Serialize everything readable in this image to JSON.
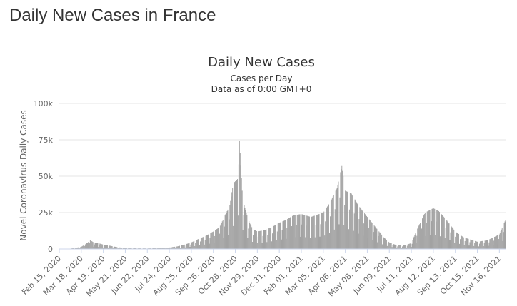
{
  "page": {
    "title": "Daily New Cases in France"
  },
  "chart_data": {
    "type": "bar",
    "title": "Daily New Cases",
    "subtitle_lines": [
      "Cases per Day",
      "Data as of 0:00 GMT+0"
    ],
    "xlabel": "",
    "ylabel": "Novel Coronavirus Daily Cases",
    "ylim": [
      0,
      100000
    ],
    "y_ticks": [
      {
        "value": 0,
        "label": "0"
      },
      {
        "value": 25000,
        "label": "25k"
      },
      {
        "value": 50000,
        "label": "50k"
      },
      {
        "value": 75000,
        "label": "75k"
      },
      {
        "value": 100000,
        "label": "100k"
      }
    ],
    "x_tick_labels": [
      "Feb 15, 2020",
      "Mar 18, 2020",
      "Apr 19, 2020",
      "May 21, 2020",
      "Jun 22, 2020",
      "Jul 24, 2020",
      "Aug 25, 2020",
      "Sep 26, 2020",
      "Oct 28, 2020",
      "Nov 29, 2020",
      "Dec 31, 2020",
      "Feb 01, 2021",
      "Mar 05, 2021",
      "Apr 06, 2021",
      "May 08, 2021",
      "Jun 09, 2021",
      "Jul 11, 2021",
      "Aug 12, 2021",
      "Sep 13, 2021",
      "Oct 15, 2021",
      "Nov 16, 2021"
    ],
    "x_start": "Feb 15, 2020",
    "x_end": "Nov 25, 2021",
    "grid": true,
    "bar_color": "#999999",
    "series": [
      {
        "values": [
          {
            "x": "Feb 15, 2020",
            "y": 0
          },
          {
            "x": "Mar 01, 2020",
            "y": 200
          },
          {
            "x": "Mar 10, 2020",
            "y": 800
          },
          {
            "x": "Mar 18, 2020",
            "y": 1500
          },
          {
            "x": "Mar 25, 2020",
            "y": 3500
          },
          {
            "x": "Mar 31, 2020",
            "y": 6000
          },
          {
            "x": "Apr 05, 2020",
            "y": 4500
          },
          {
            "x": "Apr 12, 2020",
            "y": 4000
          },
          {
            "x": "Apr 19, 2020",
            "y": 3000
          },
          {
            "x": "Apr 26, 2020",
            "y": 2500
          },
          {
            "x": "May 03, 2020",
            "y": 1800
          },
          {
            "x": "May 10, 2020",
            "y": 1200
          },
          {
            "x": "May 21, 2020",
            "y": 700
          },
          {
            "x": "Jun 01, 2020",
            "y": 500
          },
          {
            "x": "Jun 22, 2020",
            "y": 400
          },
          {
            "x": "Jul 10, 2020",
            "y": 600
          },
          {
            "x": "Jul 24, 2020",
            "y": 1000
          },
          {
            "x": "Aug 05, 2020",
            "y": 1800
          },
          {
            "x": "Aug 15, 2020",
            "y": 3000
          },
          {
            "x": "Aug 25, 2020",
            "y": 4500
          },
          {
            "x": "Sep 05, 2020",
            "y": 7000
          },
          {
            "x": "Sep 15, 2020",
            "y": 9000
          },
          {
            "x": "Sep 26, 2020",
            "y": 12000
          },
          {
            "x": "Oct 05, 2020",
            "y": 15000
          },
          {
            "x": "Oct 12, 2020",
            "y": 22000
          },
          {
            "x": "Oct 20, 2020",
            "y": 30000
          },
          {
            "x": "Oct 25, 2020",
            "y": 45000
          },
          {
            "x": "Oct 31, 2020",
            "y": 48000
          },
          {
            "x": "Nov 02, 2020",
            "y": 83000
          },
          {
            "x": "Nov 07, 2020",
            "y": 40000
          },
          {
            "x": "Nov 10, 2020",
            "y": 30000
          },
          {
            "x": "Nov 16, 2020",
            "y": 20000
          },
          {
            "x": "Nov 22, 2020",
            "y": 14000
          },
          {
            "x": "Nov 29, 2020",
            "y": 12000
          },
          {
            "x": "Dec 10, 2020",
            "y": 13000
          },
          {
            "x": "Dec 20, 2020",
            "y": 15000
          },
          {
            "x": "Dec 31, 2020",
            "y": 18000
          },
          {
            "x": "Jan 10, 2021",
            "y": 20000
          },
          {
            "x": "Jan 20, 2021",
            "y": 23000
          },
          {
            "x": "Feb 01, 2021",
            "y": 24000
          },
          {
            "x": "Feb 15, 2021",
            "y": 22000
          },
          {
            "x": "Mar 05, 2021",
            "y": 25000
          },
          {
            "x": "Mar 15, 2021",
            "y": 32000
          },
          {
            "x": "Mar 25, 2021",
            "y": 42000
          },
          {
            "x": "Apr 01, 2021",
            "y": 57000
          },
          {
            "x": "Apr 06, 2021",
            "y": 40000
          },
          {
            "x": "Apr 15, 2021",
            "y": 38000
          },
          {
            "x": "Apr 25, 2021",
            "y": 30000
          },
          {
            "x": "May 08, 2021",
            "y": 22000
          },
          {
            "x": "May 20, 2021",
            "y": 15000
          },
          {
            "x": "Jun 01, 2021",
            "y": 8000
          },
          {
            "x": "Jun 09, 2021",
            "y": 4500
          },
          {
            "x": "Jun 20, 2021",
            "y": 2500
          },
          {
            "x": "Jul 01, 2021",
            "y": 2500
          },
          {
            "x": "Jul 11, 2021",
            "y": 4000
          },
          {
            "x": "Jul 20, 2021",
            "y": 14000
          },
          {
            "x": "Jul 31, 2021",
            "y": 25000
          },
          {
            "x": "Aug 12, 2021",
            "y": 28000
          },
          {
            "x": "Aug 20, 2021",
            "y": 26000
          },
          {
            "x": "Aug 31, 2021",
            "y": 20000
          },
          {
            "x": "Sep 13, 2021",
            "y": 12000
          },
          {
            "x": "Sep 25, 2021",
            "y": 8000
          },
          {
            "x": "Oct 15, 2021",
            "y": 5000
          },
          {
            "x": "Oct 30, 2021",
            "y": 6000
          },
          {
            "x": "Nov 16, 2021",
            "y": 10000
          },
          {
            "x": "Nov 25, 2021",
            "y": 20000
          }
        ]
      }
    ]
  }
}
